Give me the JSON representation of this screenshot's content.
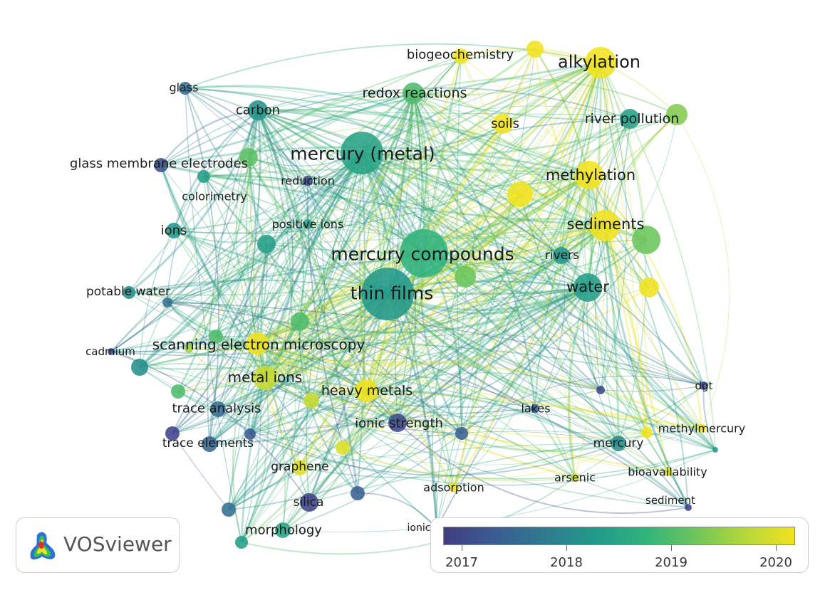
{
  "app": {
    "logo_text": "VOSviewer"
  },
  "colors": {
    "y2017": "#413d84",
    "y2018": "#22998a",
    "y2019": "#6cc55c",
    "y2020": "#f1e21f"
  },
  "network": {
    "nodes": [
      {
        "id": "alkylation",
        "label": "alkylation",
        "year": 2020.0
      },
      {
        "id": "biogeochemistry",
        "label": "biogeochemistry",
        "year": 2020.0
      },
      {
        "id": "redox",
        "label": "redox reactions",
        "year": 2019.2
      },
      {
        "id": "soils",
        "label": "soils",
        "year": 2020.0
      },
      {
        "id": "riverpol",
        "label": "river pollution",
        "year": 2018.6
      },
      {
        "id": "mercurymetal",
        "label": "mercury (metal)",
        "year": 2018.7
      },
      {
        "id": "carbon",
        "label": "carbon",
        "year": 2018.4
      },
      {
        "id": "glass",
        "label": "glass",
        "year": 2017.8
      },
      {
        "id": "gme",
        "label": "glass membrane electrodes",
        "year": 2017.3
      },
      {
        "id": "reduction",
        "label": "reduction",
        "year": 2017.2
      },
      {
        "id": "colorimetry",
        "label": "colorimetry",
        "year": 2018.6
      },
      {
        "id": "methylation",
        "label": "methylation",
        "year": 2020.0
      },
      {
        "id": "ions",
        "label": "ions",
        "year": 2018.5
      },
      {
        "id": "positiveions",
        "label": "positive ions",
        "year": 2018.6
      },
      {
        "id": "sediments",
        "label": "sediments",
        "year": 2020.0
      },
      {
        "id": "mercurycomp",
        "label": "mercury compounds",
        "year": 2019.0
      },
      {
        "id": "rivers",
        "label": "rivers",
        "year": 2018.4
      },
      {
        "id": "thinfilms",
        "label": "thin films",
        "year": 2018.5
      },
      {
        "id": "water",
        "label": "water",
        "year": 2018.6
      },
      {
        "id": "potablewater",
        "label": "potable water",
        "year": 2018.3
      },
      {
        "id": "sem",
        "label": "scanning electron microscopy",
        "year": 2020.0
      },
      {
        "id": "cadmium",
        "label": "cadmium",
        "year": 2017.3
      },
      {
        "id": "metalions",
        "label": "metal ions",
        "year": 2019.8
      },
      {
        "id": "heavymetals",
        "label": "heavy metals",
        "year": 2020.0
      },
      {
        "id": "dgt",
        "label": "dgt",
        "year": 2017.3
      },
      {
        "id": "traceanalysis",
        "label": "trace analysis",
        "year": 2017.8
      },
      {
        "id": "ionicstrength",
        "label": "ionic strength",
        "year": 2017.2
      },
      {
        "id": "lakes",
        "label": "lakes",
        "year": 2017.6
      },
      {
        "id": "methylmercury",
        "label": "methylmercury",
        "year": 2020.0
      },
      {
        "id": "traceelements",
        "label": "trace elements",
        "year": 2017.7
      },
      {
        "id": "mercury",
        "label": "mercury",
        "year": 2018.3
      },
      {
        "id": "graphene",
        "label": "graphene",
        "year": 2019.9
      },
      {
        "id": "bioavailability",
        "label": "bioavailability",
        "year": 2019.9
      },
      {
        "id": "arsenic",
        "label": "arsenic",
        "year": 2019.8
      },
      {
        "id": "adsorption",
        "label": "adsorption",
        "year": 2020.0
      },
      {
        "id": "silica",
        "label": "silica",
        "year": 2017.1
      },
      {
        "id": "sediment",
        "label": "sediment",
        "year": 2017.1
      },
      {
        "id": "morphology",
        "label": "morphology",
        "year": 2018.7
      },
      {
        "id": "ionicliquids",
        "label": "ionic liquids",
        "year": 2017.5
      }
    ]
  },
  "legend": {
    "ticks": [
      "2017",
      "2018",
      "2019",
      "2020"
    ]
  }
}
